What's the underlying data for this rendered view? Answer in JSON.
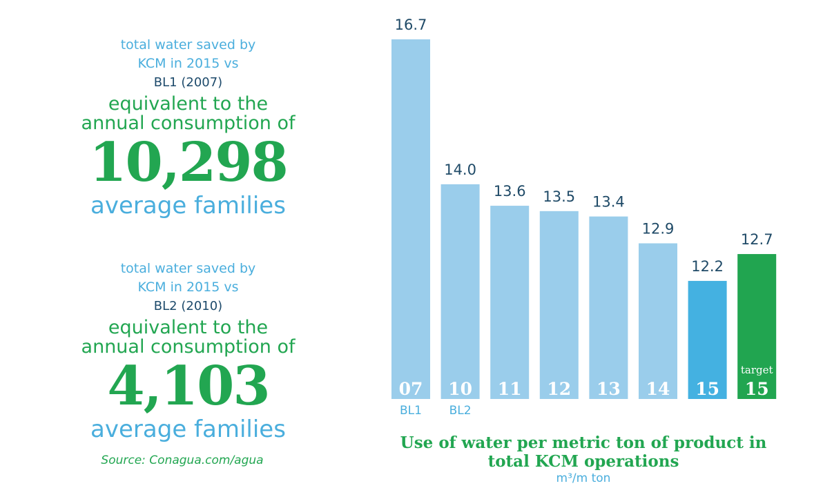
{
  "left": {
    "blocks": [
      {
        "line1": "total water saved by",
        "line2": "KCM in 2015 vs",
        "baseline": "BL1 (2007)",
        "equiv1": "equivalent to the",
        "equiv2": "annual consumption of",
        "number": "10,298",
        "families": "average families"
      },
      {
        "line1": "total water saved by",
        "line2": "KCM in 2015 vs",
        "baseline": "BL2 (2010)",
        "equiv1": "equivalent to the",
        "equiv2": "annual consumption of",
        "number": "4,103",
        "families": "average families"
      }
    ],
    "source": "Source: Conagua.com/agua"
  },
  "chart_title_line1": "Use of water per metric ton of product in",
  "chart_title_line2": "total KCM operations",
  "chart_unit": "m³/m ton",
  "colors": {
    "bar_light": "#9acdeb",
    "bar_current": "#44b1e1",
    "bar_target": "#21a550",
    "value_text": "#1f4a67",
    "baseline_text": "#4aaedd"
  },
  "chart_data": {
    "type": "bar",
    "categories": [
      "07",
      "10",
      "11",
      "12",
      "13",
      "14",
      "15",
      "15"
    ],
    "category_prefix": [
      "",
      "",
      "",
      "",
      "",
      "",
      "",
      "target"
    ],
    "baseline_labels": [
      "BL1",
      "BL2",
      "",
      "",
      "",
      "",
      "",
      ""
    ],
    "values": [
      16.7,
      14.0,
      13.6,
      13.5,
      13.4,
      12.9,
      12.2,
      12.7
    ],
    "value_labels": [
      "16.7",
      "14.0",
      "13.6",
      "13.5",
      "13.4",
      "12.9",
      "12.2",
      "12.7"
    ],
    "bar_kind": [
      "baseline",
      "baseline",
      "history",
      "history",
      "history",
      "history",
      "current",
      "target"
    ],
    "title": "Use of water per metric ton of product in total KCM operations",
    "ylabel": "m³/m ton",
    "ylim": [
      10,
      16.7
    ],
    "grid": false
  }
}
